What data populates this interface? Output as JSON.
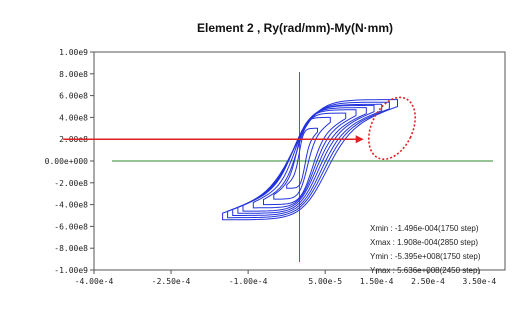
{
  "chart_data": {
    "type": "line",
    "title": "Element 2 , Ry(rad/mm)-My(N·mm)",
    "xlabel": "",
    "ylabel": "",
    "xlim": [
      -0.0004,
      0.0004
    ],
    "ylim": [
      -1000000000,
      1000000000
    ],
    "x_ticks": [
      {
        "value": -0.0004,
        "label": "-4.00e-4"
      },
      {
        "value": -0.00025,
        "label": "-2.50e-4"
      },
      {
        "value": -0.0001,
        "label": "-1.00e-4"
      },
      {
        "value": 5e-05,
        "label": "5.00e-5"
      },
      {
        "value": 0.00015,
        "label": "1.50e-4"
      },
      {
        "value": 0.00025,
        "label": "2.50e-4"
      },
      {
        "value": 0.00035,
        "label": "3.50e-4"
      }
    ],
    "y_ticks": [
      {
        "value": 1000000000,
        "label": "1.00e9"
      },
      {
        "value": 800000000,
        "label": "8.00e8"
      },
      {
        "value": 600000000,
        "label": "6.00e8"
      },
      {
        "value": 400000000,
        "label": "4.00e8"
      },
      {
        "value": 200000000,
        "label": "2.00e8"
      },
      {
        "value": 0,
        "label": "0.00e+000"
      },
      {
        "value": -200000000,
        "label": "-2.00e8"
      },
      {
        "value": -400000000,
        "label": "-4.00e8"
      },
      {
        "value": -600000000,
        "label": "-6.00e8"
      },
      {
        "value": -800000000,
        "label": "-8.00e8"
      },
      {
        "value": -1000000000,
        "label": "-1.00e9"
      }
    ],
    "grid": false,
    "crosshair": {
      "x": 0.0,
      "y": 0.0
    },
    "stats": [
      "Xmin : -1.496e-004(1750 step)",
      "Xmax : 1.908e-004(2850 step)",
      "Ymin : -5.395e+008(1750 step)",
      "Ymax : 5.636e+008(2450 step)"
    ],
    "hysteresis_loops": [
      {
        "amp_pos": 3.5e-05,
        "amp_neg": -2.5e-05,
        "m_pos": 300000000,
        "m_neg": -250000000,
        "m_y": 140000000
      },
      {
        "amp_pos": 6e-05,
        "amp_neg": -5e-05,
        "m_pos": 400000000,
        "m_neg": -350000000,
        "m_y": 170000000
      },
      {
        "amp_pos": 9e-05,
        "amp_neg": -7e-05,
        "m_pos": 440000000,
        "m_neg": -400000000,
        "m_y": 190000000
      },
      {
        "amp_pos": 0.00011,
        "amp_neg": -9e-05,
        "m_pos": 470000000,
        "m_neg": -430000000,
        "m_y": 200000000
      },
      {
        "amp_pos": 0.00013,
        "amp_neg": -0.00011,
        "m_pos": 490000000,
        "m_neg": -460000000,
        "m_y": 205000000
      },
      {
        "amp_pos": 0.000145,
        "amp_neg": -0.00012,
        "m_pos": 510000000,
        "m_neg": -480000000,
        "m_y": 210000000
      },
      {
        "amp_pos": 0.00016,
        "amp_neg": -0.00013,
        "m_pos": 520000000,
        "m_neg": -500000000,
        "m_y": 215000000
      },
      {
        "amp_pos": 0.000175,
        "amp_neg": -0.00014,
        "m_pos": 540000000,
        "m_neg": -520000000,
        "m_y": 220000000
      },
      {
        "amp_pos": 0.0001908,
        "amp_neg": -0.0001496,
        "m_pos": 563600000,
        "m_neg": -539500000,
        "m_y": 225000000
      }
    ],
    "annotation_ellipse": {
      "cx": 0.00018,
      "cy": 300000000,
      "rx": 4e-05,
      "ry": 300000000,
      "rotate_deg": 25,
      "color": "#e02020"
    },
    "annotation_arrow": {
      "x_start": -0.00046,
      "x_end": 0.000125,
      "y": 200000000,
      "color": "#e02020"
    },
    "colors": {
      "series": "#2233dd",
      "crosshair": "#2c8a2c",
      "annotation": "#e02020"
    }
  }
}
